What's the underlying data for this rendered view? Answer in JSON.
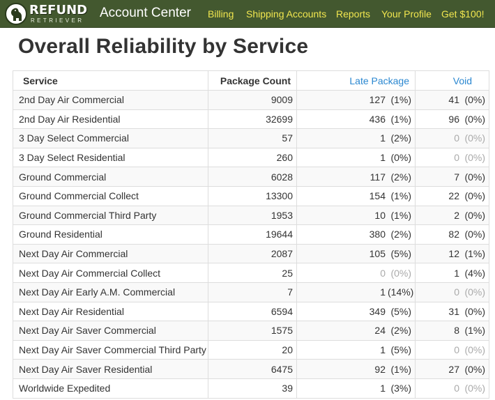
{
  "header": {
    "logo_main": "REFUND",
    "logo_sub": "RETRIEVER",
    "brand": "Account Center",
    "nav": [
      "Billing",
      "Shipping Accounts",
      "Reports",
      "Your Profile",
      "Get $100!"
    ]
  },
  "page": {
    "title": "Overall Reliability by Service"
  },
  "table": {
    "headers": {
      "service": "Service",
      "count": "Package Count",
      "late": "Late Package",
      "void": "Void"
    },
    "rows": [
      {
        "service": "2nd Day Air Commercial",
        "count": "9009",
        "late": "127",
        "late_pct": "(1%)",
        "void": "41",
        "void_pct": "(0%)"
      },
      {
        "service": "2nd Day Air Residential",
        "count": "32699",
        "late": "436",
        "late_pct": "(1%)",
        "void": "96",
        "void_pct": "(0%)"
      },
      {
        "service": "3 Day Select Commercial",
        "count": "57",
        "late": "1",
        "late_pct": "(2%)",
        "void": "0",
        "void_pct": "(0%)"
      },
      {
        "service": "3 Day Select Residential",
        "count": "260",
        "late": "1",
        "late_pct": "(0%)",
        "void": "0",
        "void_pct": "(0%)"
      },
      {
        "service": "Ground Commercial",
        "count": "6028",
        "late": "117",
        "late_pct": "(2%)",
        "void": "7",
        "void_pct": "(0%)"
      },
      {
        "service": "Ground Commercial Collect",
        "count": "13300",
        "late": "154",
        "late_pct": "(1%)",
        "void": "22",
        "void_pct": "(0%)"
      },
      {
        "service": "Ground Commercial Third Party",
        "count": "1953",
        "late": "10",
        "late_pct": "(1%)",
        "void": "2",
        "void_pct": "(0%)"
      },
      {
        "service": "Ground Residential",
        "count": "19644",
        "late": "380",
        "late_pct": "(2%)",
        "void": "82",
        "void_pct": "(0%)"
      },
      {
        "service": "Next Day Air Commercial",
        "count": "2087",
        "late": "105",
        "late_pct": "(5%)",
        "void": "12",
        "void_pct": "(1%)"
      },
      {
        "service": "Next Day Air Commercial Collect",
        "count": "25",
        "late": "0",
        "late_pct": "(0%)",
        "void": "1",
        "void_pct": "(4%)"
      },
      {
        "service": "Next Day Air Early A.M. Commercial",
        "count": "7",
        "late": "1",
        "late_pct": "(14%)",
        "void": "0",
        "void_pct": "(0%)"
      },
      {
        "service": "Next Day Air Residential",
        "count": "6594",
        "late": "349",
        "late_pct": "(5%)",
        "void": "31",
        "void_pct": "(0%)"
      },
      {
        "service": "Next Day Air Saver Commercial",
        "count": "1575",
        "late": "24",
        "late_pct": "(2%)",
        "void": "8",
        "void_pct": "(1%)"
      },
      {
        "service": "Next Day Air Saver Commercial Third Party",
        "count": "20",
        "late": "1",
        "late_pct": "(5%)",
        "void": "0",
        "void_pct": "(0%)"
      },
      {
        "service": "Next Day Air Saver Residential",
        "count": "6475",
        "late": "92",
        "late_pct": "(1%)",
        "void": "27",
        "void_pct": "(0%)"
      },
      {
        "service": "Worldwide Expedited",
        "count": "39",
        "late": "1",
        "late_pct": "(3%)",
        "void": "0",
        "void_pct": "(0%)"
      }
    ]
  },
  "colors": {
    "navbar": "#43582f",
    "nav_link": "#f1e64f",
    "sortable_header": "#2a87d0",
    "zero_value": "#aaaaaa"
  },
  "icons": {
    "logo": "dog-silhouette-icon"
  }
}
